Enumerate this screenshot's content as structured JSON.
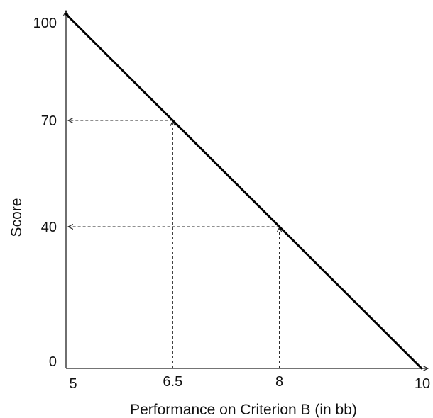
{
  "chart_data": {
    "type": "line",
    "title": "",
    "xlabel": "Performance on Criterion B (in bb)",
    "ylabel": "Score",
    "xlim": [
      5,
      10
    ],
    "ylim": [
      0,
      100
    ],
    "x_ticks": [
      {
        "value": 5,
        "label": "5"
      },
      {
        "value": 6.5,
        "label": "6.5"
      },
      {
        "value": 8,
        "label": "8"
      },
      {
        "value": 10,
        "label": "10"
      }
    ],
    "y_ticks": [
      {
        "value": 0,
        "label": "0"
      },
      {
        "value": 40,
        "label": "40"
      },
      {
        "value": 70,
        "label": "70"
      },
      {
        "value": 100,
        "label": "100"
      }
    ],
    "series": [
      {
        "points": [
          {
            "x": 5,
            "y": 100
          },
          {
            "x": 10,
            "y": 0
          }
        ]
      }
    ],
    "reference_lines": [
      {
        "x": 6.5,
        "y": 70
      },
      {
        "x": 8,
        "y": 40
      }
    ],
    "grid": false,
    "colors": {
      "line": "#000000",
      "axis": "#222222",
      "reference": "#222222"
    }
  }
}
